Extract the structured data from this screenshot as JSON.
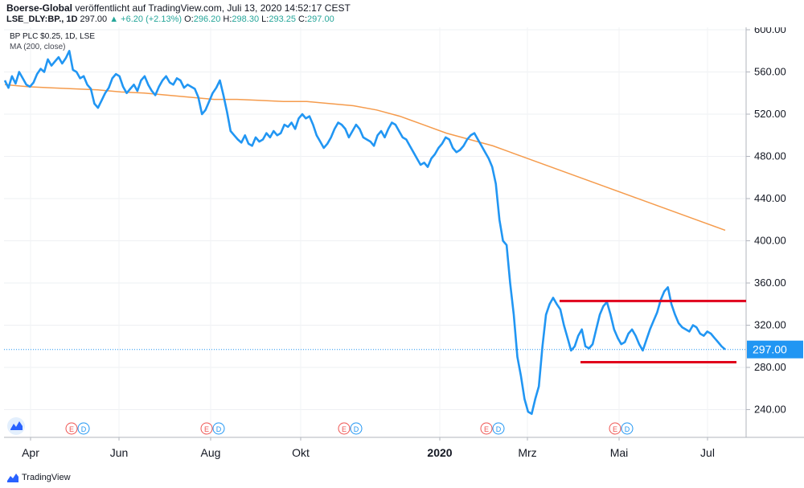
{
  "header": {
    "author": "Boerse-Global",
    "published": "veröffentlicht auf TradingView.com, Juli 13, 2020 14:52:17 CEST",
    "symbol": "LSE_DLY:BP., 1D",
    "last": "297.00",
    "change": "▲ +6.20 (+2.13%)",
    "open_label": "O:",
    "open": "296.20",
    "high_label": "H:",
    "high": "298.30",
    "low_label": "L:",
    "low": "293.25",
    "close_label": "C:",
    "close": "297.00"
  },
  "legend": {
    "title": "BP PLC $0.25, 1D, LSE",
    "indicator": "MA (200, close)"
  },
  "footer": {
    "brand": "TradingView"
  },
  "colors": {
    "price": "#2196f3",
    "ma": "#f59b4c",
    "levels": "#e0001b",
    "current": "#2196f3"
  },
  "chart_data": {
    "type": "line",
    "x_labels": [
      "Apr",
      "Jun",
      "Aug",
      "Okt",
      "2020",
      "Mrz",
      "Mai",
      "Jul"
    ],
    "ylim": [
      220,
      610
    ],
    "y_ticks": [
      "600.00",
      "560.00",
      "520.00",
      "480.00",
      "440.00",
      "400.00",
      "360.00",
      "320.00",
      "280.00",
      "240.00"
    ],
    "current_value": "297.00",
    "series": [
      {
        "name": "BP PLC $0.25, 1D, LSE",
        "values": [
          552,
          545,
          556,
          549,
          560,
          554,
          548,
          546,
          550,
          558,
          563,
          560,
          572,
          566,
          570,
          574,
          568,
          573,
          580,
          562,
          560,
          554,
          556,
          548,
          544,
          530,
          526,
          533,
          540,
          545,
          554,
          558,
          556,
          546,
          540,
          544,
          548,
          542,
          552,
          556,
          548,
          542,
          538,
          546,
          552,
          556,
          550,
          548,
          554,
          552,
          545,
          548,
          546,
          544,
          536,
          520,
          524,
          532,
          540,
          545,
          552,
          538,
          522,
          504,
          500,
          496,
          493,
          500,
          492,
          490,
          498,
          494,
          496,
          502,
          498,
          504,
          500,
          502,
          510,
          508,
          512,
          506,
          516,
          520,
          516,
          518,
          510,
          500,
          494,
          488,
          492,
          498,
          506,
          512,
          510,
          506,
          498,
          504,
          510,
          506,
          498,
          496,
          494,
          490,
          500,
          504,
          498,
          506,
          512,
          510,
          504,
          498,
          496,
          490,
          484,
          478,
          472,
          474,
          470,
          478,
          482,
          488,
          492,
          498,
          496,
          488,
          484,
          486,
          490,
          496,
          500,
          502,
          496,
          490,
          484,
          478,
          470,
          454,
          420,
          400,
          396,
          360,
          330,
          290,
          272,
          250,
          238,
          236,
          250,
          262,
          300,
          330,
          340,
          346,
          340,
          335,
          320,
          308,
          296,
          300,
          310,
          316,
          300,
          298,
          302,
          316,
          330,
          338,
          342,
          330,
          316,
          308,
          302,
          304,
          312,
          316,
          310,
          302,
          296,
          306,
          316,
          324,
          332,
          344,
          352,
          356,
          340,
          330,
          322,
          318,
          316,
          314,
          320,
          318,
          312,
          310,
          314,
          312,
          308,
          304,
          300,
          297
        ]
      },
      {
        "name": "MA (200, close)",
        "values": [
          548,
          546,
          545,
          544,
          543,
          541,
          540,
          538,
          536,
          534,
          534,
          533,
          532,
          532,
          530,
          528,
          524,
          518,
          510,
          502,
          496,
          490,
          482,
          474,
          466,
          458,
          450,
          442,
          434,
          426,
          418,
          410
        ]
      }
    ],
    "levels": [
      {
        "name": "resistance",
        "value": 343
      },
      {
        "name": "support",
        "value": 285
      }
    ],
    "markers": [
      "E",
      "D"
    ]
  }
}
